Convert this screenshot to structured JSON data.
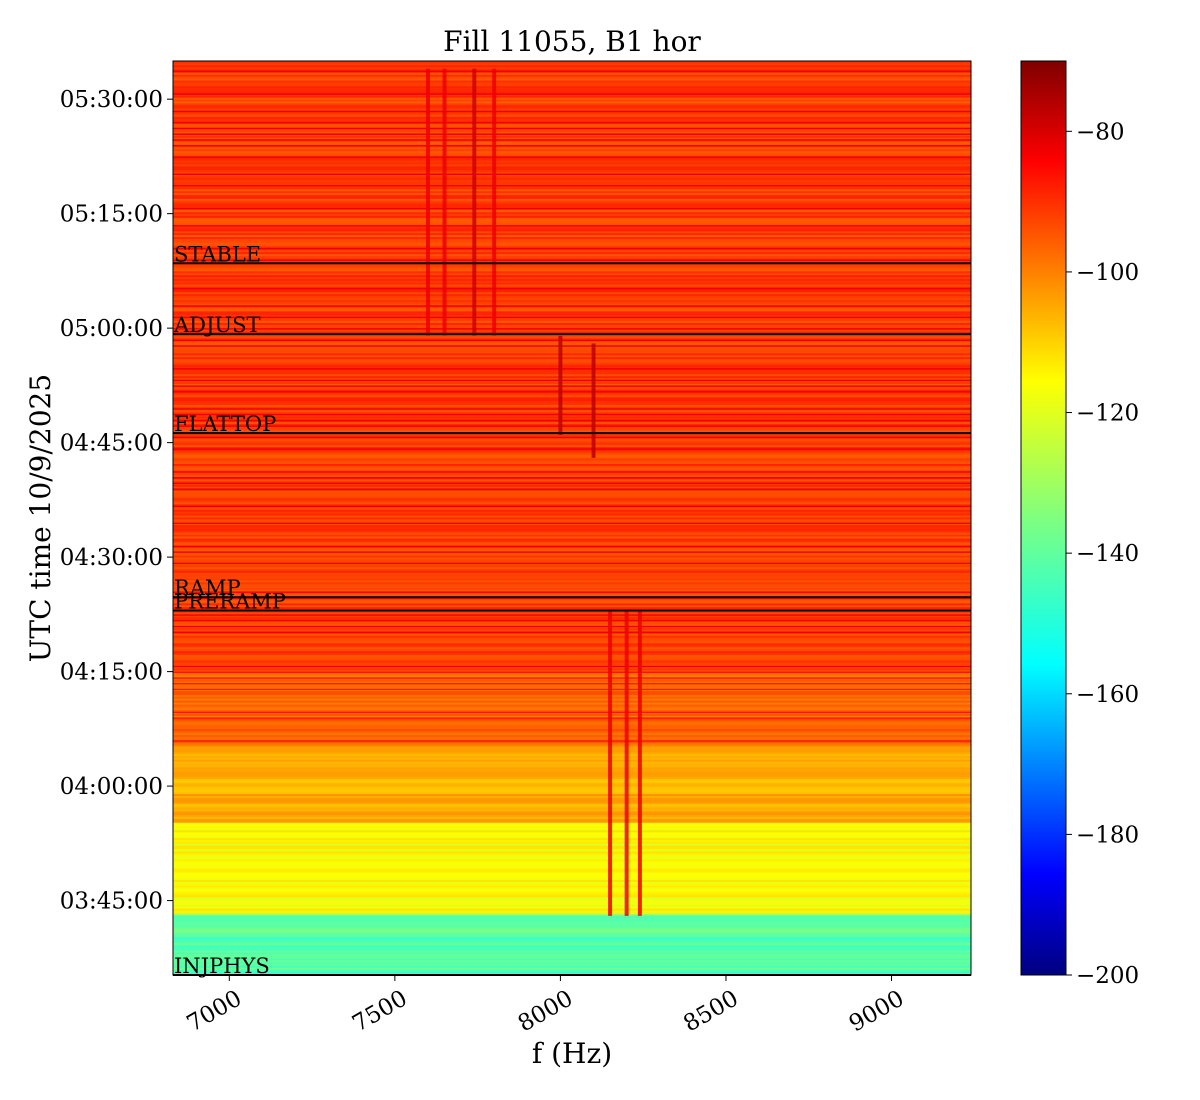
{
  "chart_data": {
    "type": "heatmap",
    "title": "Fill 11055, B1 hor",
    "xlabel": "f (Hz)",
    "ylabel": "UTC time 10/9/2025",
    "xlim": [
      6830,
      9240
    ],
    "ylim": [
      "03:35:15",
      "05:35:00"
    ],
    "xticks": [
      {
        "value": 7000,
        "label": "7000"
      },
      {
        "value": 7500,
        "label": "7500"
      },
      {
        "value": 8000,
        "label": "8000"
      },
      {
        "value": 8500,
        "label": "8500"
      },
      {
        "value": 9000,
        "label": "9000"
      }
    ],
    "yticks": [
      {
        "value": "03:45:00",
        "label": "03:45:00"
      },
      {
        "value": "04:00:00",
        "label": "04:00:00"
      },
      {
        "value": "04:15:00",
        "label": "04:15:00"
      },
      {
        "value": "04:30:00",
        "label": "04:30:00"
      },
      {
        "value": "04:45:00",
        "label": "04:45:00"
      },
      {
        "value": "05:00:00",
        "label": "05:00:00"
      },
      {
        "value": "05:15:00",
        "label": "05:15:00"
      },
      {
        "value": "05:30:00",
        "label": "05:30:00"
      }
    ],
    "colorbar": {
      "colormap": "jet",
      "range": [
        -200,
        -70
      ],
      "ticks": [
        {
          "value": -80,
          "label": "−80"
        },
        {
          "value": -100,
          "label": "−100"
        },
        {
          "value": -120,
          "label": "−120"
        },
        {
          "value": -140,
          "label": "−140"
        },
        {
          "value": -160,
          "label": "−160"
        },
        {
          "value": -180,
          "label": "−180"
        },
        {
          "value": -200,
          "label": "−200"
        }
      ]
    },
    "beam_modes": [
      {
        "label": "INJPHYS",
        "time": "03:35:15"
      },
      {
        "label": "PRERAMP",
        "time": "04:23:00"
      },
      {
        "label": "RAMP",
        "time": "04:24:45"
      },
      {
        "label": "FLATTOP",
        "time": "04:46:15"
      },
      {
        "label": "ADJUST",
        "time": "04:59:15"
      },
      {
        "label": "STABLE",
        "time": "05:08:30"
      }
    ],
    "features": [
      {
        "f_start": 8000,
        "f_end": 8000,
        "t_start": "04:46:00",
        "t_end": "04:59:00",
        "level": -78
      },
      {
        "f_start": 8100,
        "f_end": 8100,
        "t_start": "04:43:00",
        "t_end": "04:58:00",
        "level": -78
      },
      {
        "f_start": 8150,
        "f_end": 8150,
        "t_start": "03:43:00",
        "t_end": "04:23:00",
        "level": -84
      },
      {
        "f_start": 8200,
        "f_end": 8200,
        "t_start": "03:43:00",
        "t_end": "04:23:00",
        "level": -84
      },
      {
        "f_start": 8240,
        "f_end": 8240,
        "t_start": "03:43:00",
        "t_end": "04:23:00",
        "level": -84
      },
      {
        "f_start": 7600,
        "f_end": 7600,
        "t_start": "04:59:00",
        "t_end": "05:34:00",
        "level": -84
      },
      {
        "f_start": 7650,
        "f_end": 7650,
        "t_start": "04:59:00",
        "t_end": "05:34:00",
        "level": -84
      },
      {
        "f_start": 7740,
        "f_end": 7740,
        "t_start": "04:59:00",
        "t_end": "05:34:00",
        "level": -80
      },
      {
        "f_start": 7800,
        "f_end": 7800,
        "t_start": "04:59:00",
        "t_end": "05:34:00",
        "level": -84
      }
    ]
  }
}
